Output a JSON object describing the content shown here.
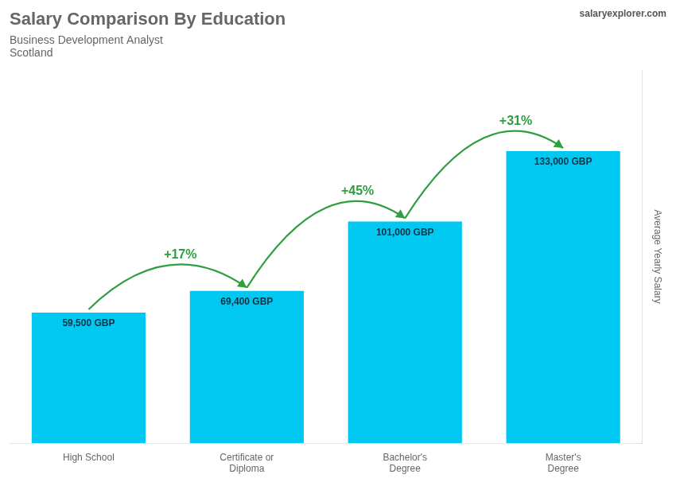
{
  "chart_data": {
    "type": "bar",
    "title": "Salary Comparison By Education",
    "subtitle": [
      "Business Development Analyst",
      "Scotland"
    ],
    "ylabel": "Average Yearly Salary",
    "categories": [
      "High School",
      "Certificate or\nDiploma",
      "Bachelor's\nDegree",
      "Master's\nDegree"
    ],
    "values": [
      59500,
      69400,
      101000,
      133000
    ],
    "value_labels": [
      "59,500 GBP",
      "69,400 GBP",
      "101,000 GBP",
      "133,000 GBP"
    ],
    "data_labels": true,
    "annotations": [
      "+17%",
      "+45%",
      "+31%",
      "salaryexplorer.com"
    ],
    "color": "#00c8f0",
    "ylim": [
      0,
      170000
    ],
    "grid": false,
    "tick_labels": "x"
  }
}
